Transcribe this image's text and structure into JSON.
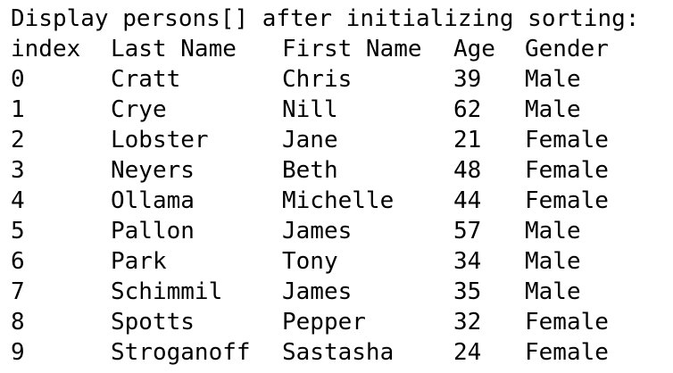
{
  "console": {
    "heading": "Display persons[] after initializing sorting:",
    "columns": {
      "index": "index",
      "last_name": "Last Name",
      "first_name": "First Name",
      "age": "Age",
      "gender": "Gender"
    },
    "rows": [
      {
        "index": "0",
        "last": "Cratt",
        "first": "Chris",
        "age": "39",
        "gender": "Male"
      },
      {
        "index": "1",
        "last": "Crye",
        "first": "Nill",
        "age": "62",
        "gender": "Male"
      },
      {
        "index": "2",
        "last": "Lobster",
        "first": "Jane",
        "age": "21",
        "gender": "Female"
      },
      {
        "index": "3",
        "last": "Neyers",
        "first": "Beth",
        "age": "48",
        "gender": "Female"
      },
      {
        "index": "4",
        "last": "Ollama",
        "first": "Michelle",
        "age": "44",
        "gender": "Female"
      },
      {
        "index": "5",
        "last": "Pallon",
        "first": "James",
        "age": "57",
        "gender": "Male"
      },
      {
        "index": "6",
        "last": "Park",
        "first": "Tony",
        "age": "34",
        "gender": "Male"
      },
      {
        "index": "7",
        "last": "Schimmil",
        "first": "James",
        "age": "35",
        "gender": "Male"
      },
      {
        "index": "8",
        "last": "Spotts",
        "first": "Pepper",
        "age": "32",
        "gender": "Female"
      },
      {
        "index": "9",
        "last": "Stroganoff",
        "first": "Sastasha",
        "age": "24",
        "gender": "Female"
      }
    ]
  }
}
